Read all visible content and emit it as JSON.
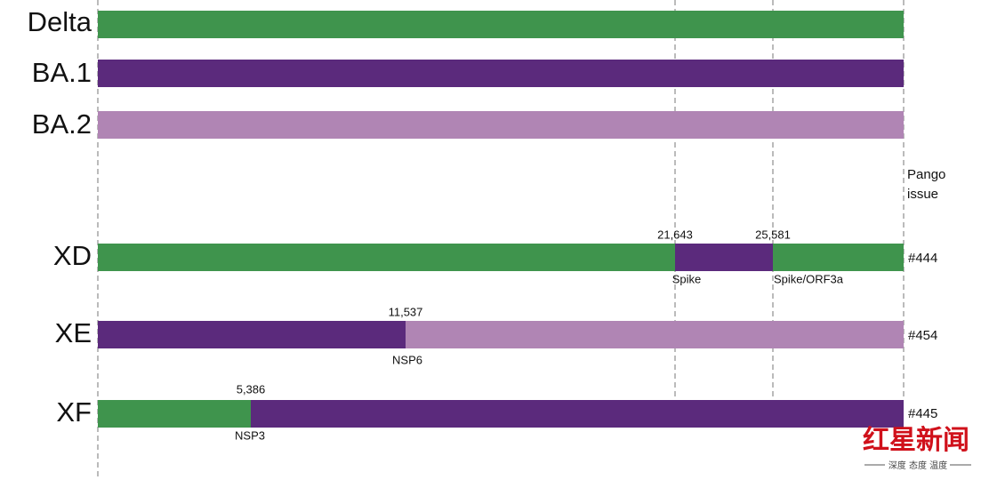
{
  "rows": [
    {
      "label": "Delta"
    },
    {
      "label": "BA.1"
    },
    {
      "label": "BA.2"
    },
    {
      "label": "XD",
      "issue": "#444",
      "breakpoints": [
        {
          "position": "21,643",
          "gene": "Spike"
        },
        {
          "position": "25,581",
          "gene": "Spike/ORF3a"
        }
      ]
    },
    {
      "label": "XE",
      "issue": "#454",
      "breakpoints": [
        {
          "position": "11,537",
          "gene": "NSP6"
        }
      ]
    },
    {
      "label": "XF",
      "issue": "#445",
      "breakpoints": [
        {
          "position": "5,386",
          "gene": "NSP3"
        }
      ]
    }
  ],
  "issue_header": [
    "Pango",
    "issue"
  ],
  "logo": {
    "name": "红星新闻",
    "slogan": "深度 态度 温度"
  }
}
